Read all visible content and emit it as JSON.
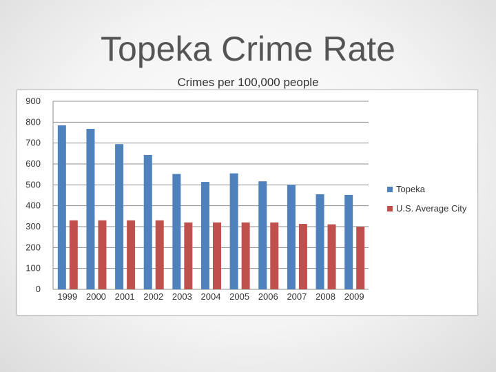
{
  "slide": {
    "title": "Topeka Crime Rate",
    "subtitle": "Crimes per 100,000 people"
  },
  "chart_data": {
    "type": "bar",
    "categories": [
      "1999",
      "2000",
      "2001",
      "2002",
      "2003",
      "2004",
      "2005",
      "2006",
      "2007",
      "2008",
      "2009"
    ],
    "series": [
      {
        "name": "Topeka",
        "color": "#4f81bd",
        "values": [
          785,
          768,
          695,
          643,
          552,
          514,
          555,
          517,
          500,
          455,
          452
        ]
      },
      {
        "name": "U.S. Average City",
        "color": "#c0504d",
        "values": [
          330,
          330,
          330,
          330,
          320,
          320,
          320,
          320,
          313,
          311,
          300
        ]
      }
    ],
    "ylim": [
      0,
      900
    ],
    "yticks": [
      "0",
      "100",
      "200",
      "300",
      "400",
      "500",
      "600",
      "700",
      "800",
      "900"
    ],
    "grid": true,
    "legend_position": "right"
  }
}
